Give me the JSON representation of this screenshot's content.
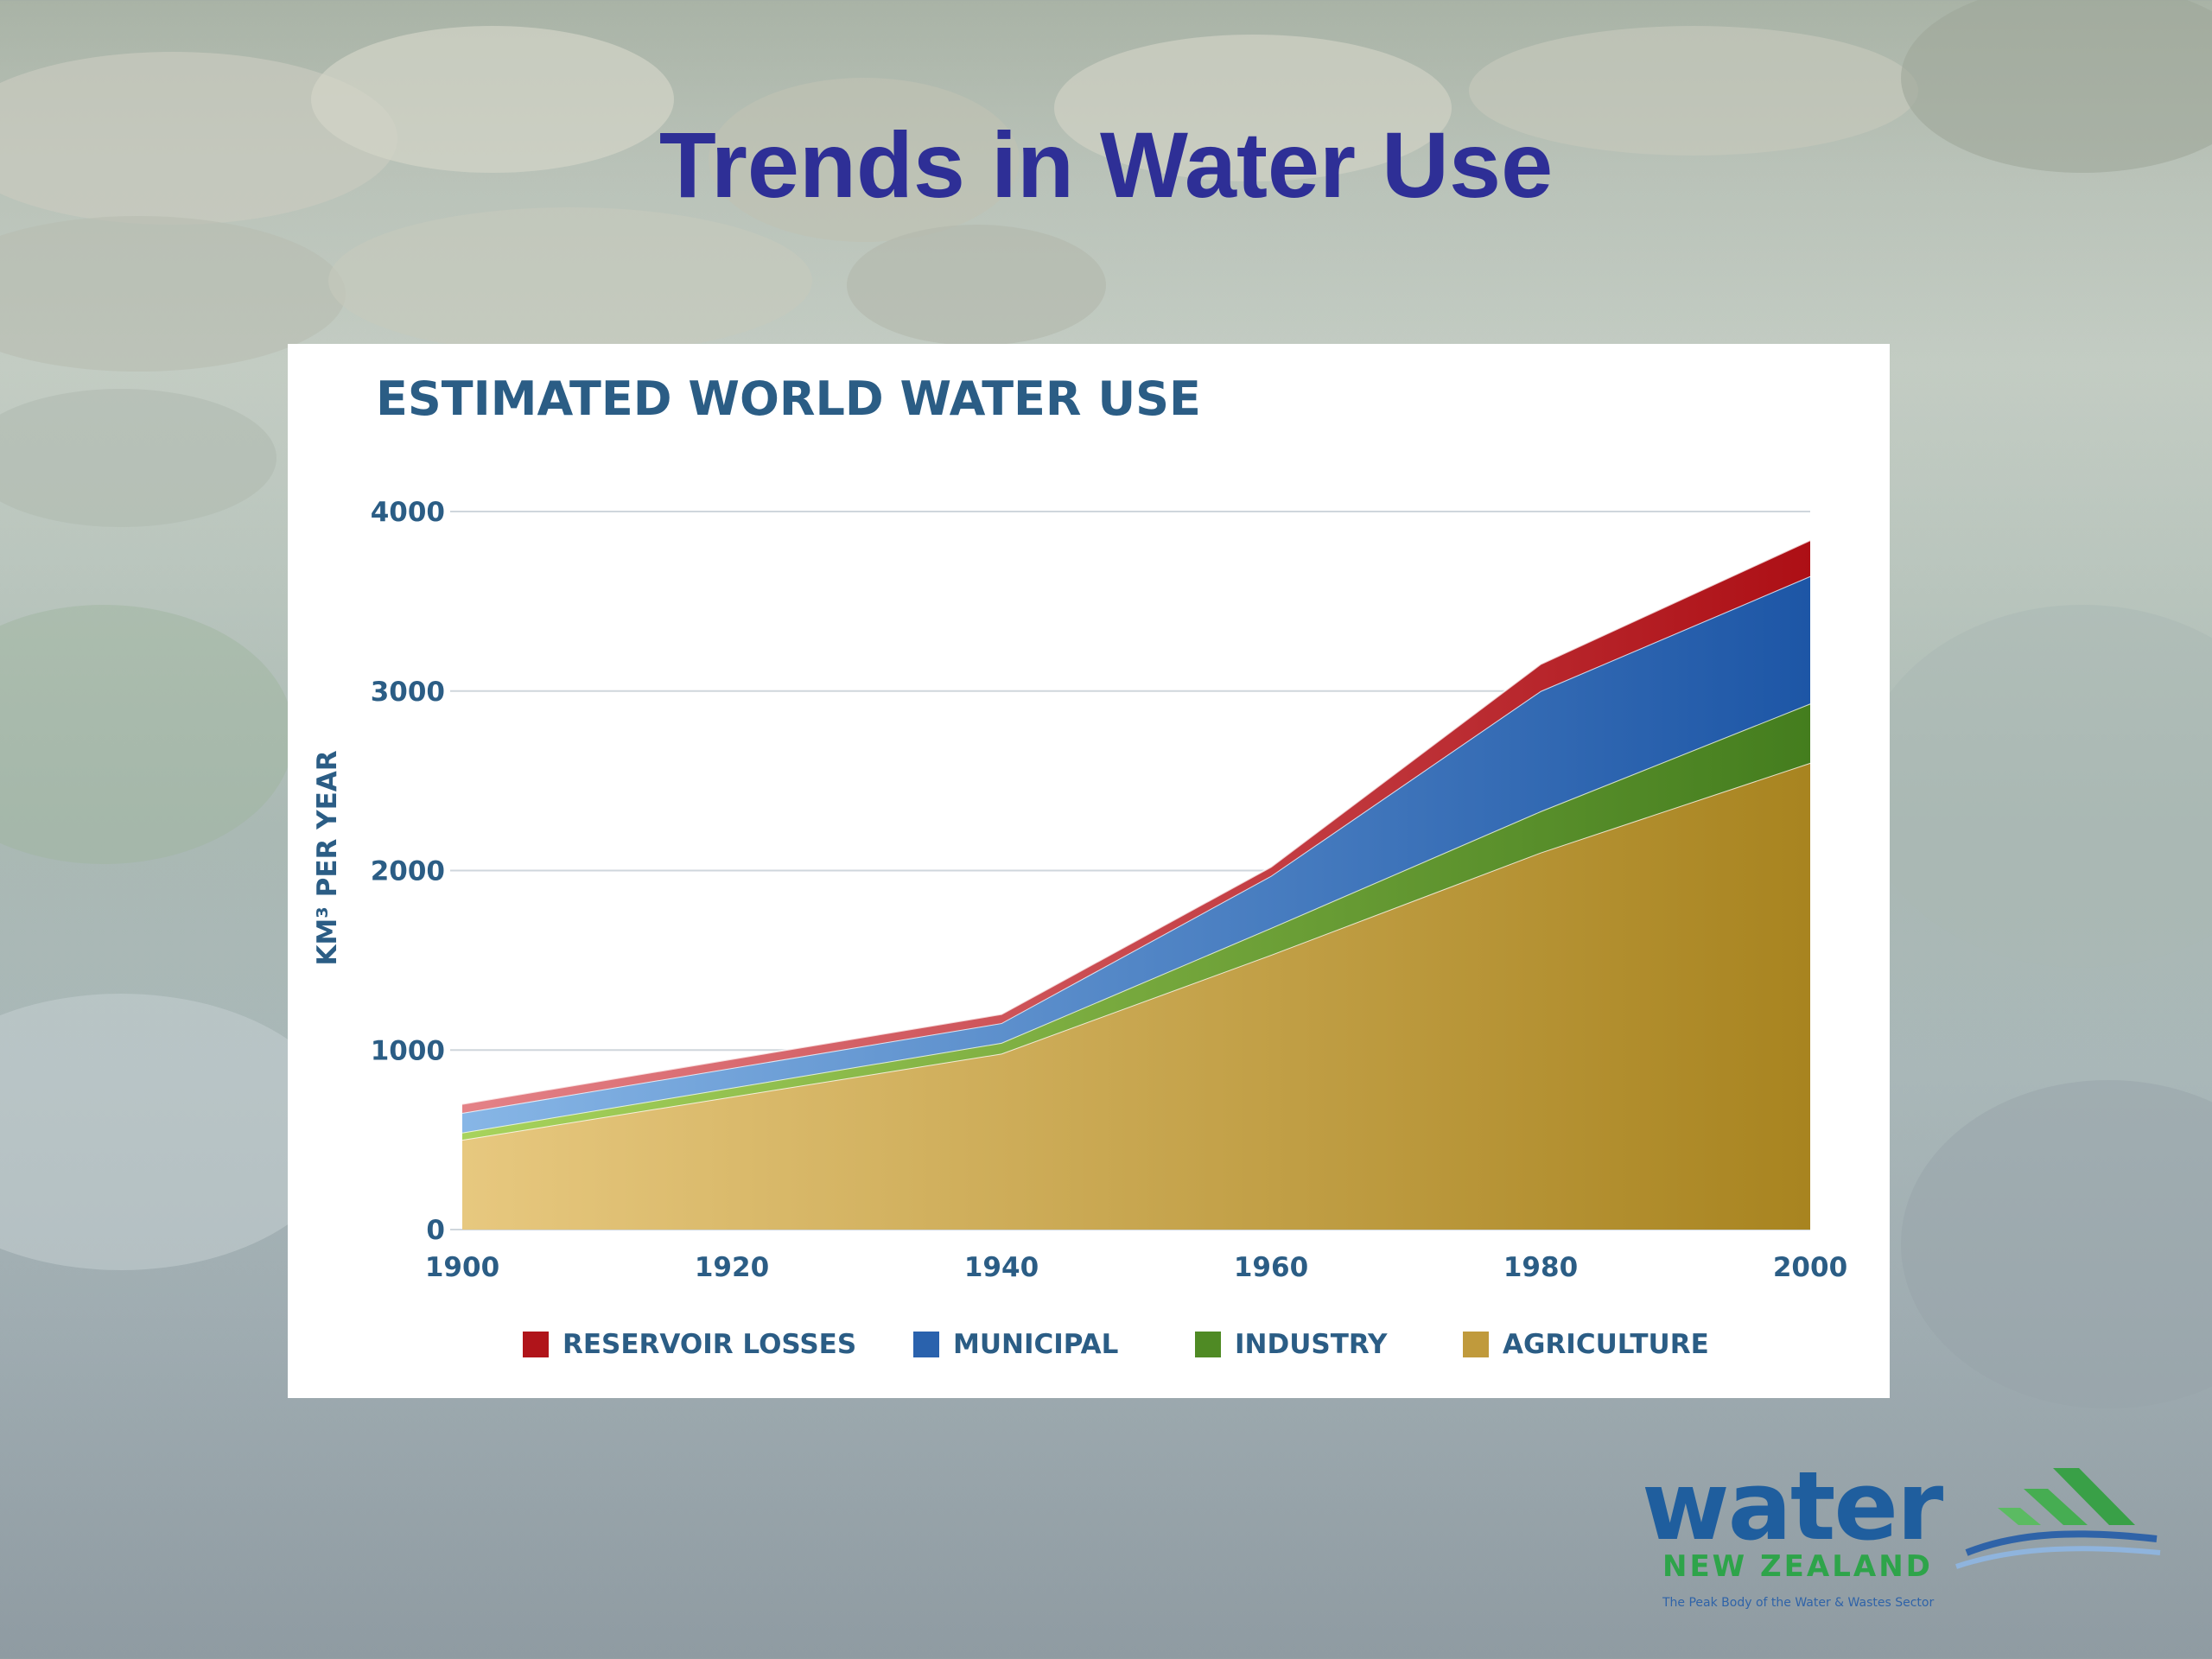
{
  "slide": {
    "title": "Trends in Water Use"
  },
  "logo": {
    "word": "water",
    "subtitle": "NEW ZEALAND",
    "tagline": "The Peak Body of the Water & Wastes Sector"
  },
  "colors": {
    "title": "#2e2f96",
    "chart_text": "#2b5d85",
    "reservoir_losses": "#b0141a",
    "municipal": "#2a62ad",
    "industry": "#4f8a24",
    "agriculture": "#c09a3c"
  },
  "chart_data": {
    "type": "area",
    "stacked": true,
    "title": "ESTIMATED WORLD WATER USE",
    "xlabel": "",
    "ylabel": "KM³ PER YEAR",
    "xlim": [
      1900,
      2000
    ],
    "ylim": [
      0,
      4000
    ],
    "x": [
      1900,
      1940,
      1960,
      1980,
      2000
    ],
    "x_ticks": [
      1900,
      1920,
      1940,
      1960,
      1980,
      2000
    ],
    "y_ticks": [
      0,
      1000,
      2000,
      3000,
      4000
    ],
    "grid": true,
    "legend_position": "bottom",
    "series": [
      {
        "name": "AGRICULTURE",
        "values": [
          500,
          980,
          1530,
          2100,
          2600
        ]
      },
      {
        "name": "INDUSTRY",
        "values": [
          40,
          60,
          150,
          230,
          330
        ]
      },
      {
        "name": "MUNICIPAL",
        "values": [
          110,
          110,
          290,
          670,
          710
        ]
      },
      {
        "name": "RESERVOIR LOSSES",
        "values": [
          50,
          50,
          50,
          150,
          200
        ]
      }
    ]
  }
}
